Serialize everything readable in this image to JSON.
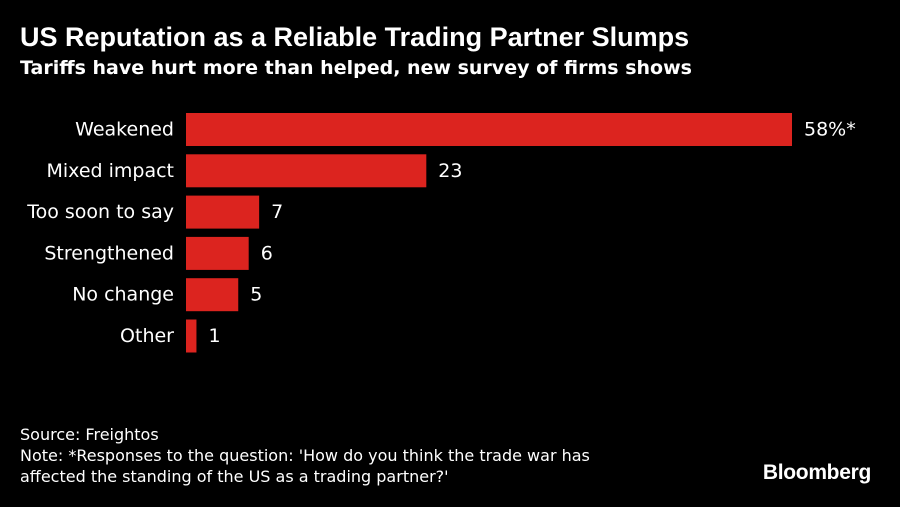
{
  "chart_data": {
    "type": "bar",
    "orientation": "horizontal",
    "title": "US Reputation as a Reliable Trading Partner Slumps",
    "subtitle": "Tariffs have hurt more than helped, new survey of firms shows",
    "categories": [
      "Weakened",
      "Mixed impact",
      "Too soon to say",
      "Strengthened",
      "No change",
      "Other"
    ],
    "values": [
      58,
      23,
      7,
      6,
      5,
      1
    ],
    "value_labels": [
      "58%*",
      "23",
      "7",
      "6",
      "5",
      "1"
    ],
    "xlim": [
      0,
      58
    ],
    "grid": false,
    "bar_color": "#dc241f"
  },
  "footer": {
    "source": "Source: Freightos",
    "note_line1": "Note: *Responses to the question: 'How do you think the trade war has",
    "note_line2": "affected the standing of the US as a trading partner?'"
  },
  "brand": "Bloomberg"
}
